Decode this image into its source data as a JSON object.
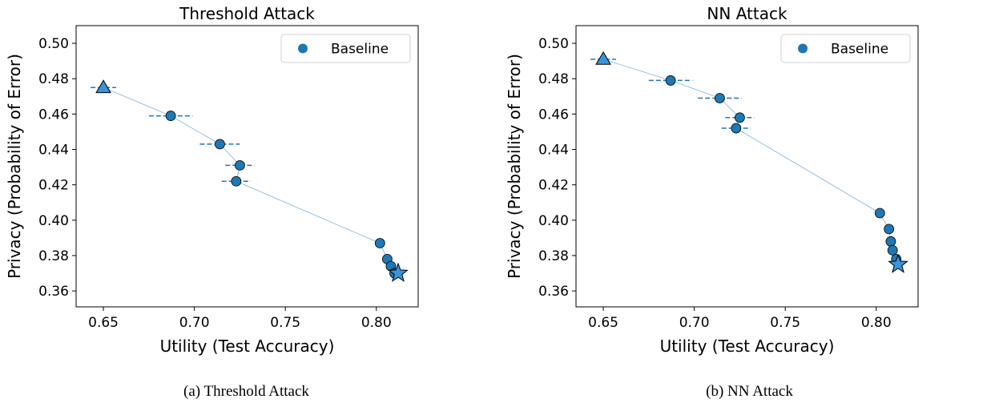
{
  "figures": [
    {
      "caption": "(a) Threshold Attack",
      "chart_data": {
        "type": "scatter",
        "title": "Threshold Attack",
        "xlabel": "Utility (Test Accuracy)",
        "ylabel": "Privacy (Probability of Error)",
        "xlim": [
          0.635,
          0.823
        ],
        "ylim": [
          0.351,
          0.51
        ],
        "xticks": [
          "0.65",
          "0.70",
          "0.75",
          "0.80"
        ],
        "yticks": [
          "0.36",
          "0.38",
          "0.40",
          "0.42",
          "0.44",
          "0.46",
          "0.48",
          "0.50"
        ],
        "legend": {
          "label": "Baseline",
          "position": "top-right"
        },
        "grid": false,
        "series": [
          {
            "name": "Baseline",
            "color": "#1f77b4",
            "points": [
              {
                "x": 0.65,
                "y": 0.475,
                "marker": "triangle",
                "xerr": 0.007
              },
              {
                "x": 0.687,
                "y": 0.459,
                "xerr": 0.012
              },
              {
                "x": 0.714,
                "y": 0.443,
                "xerr": 0.011
              },
              {
                "x": 0.725,
                "y": 0.431,
                "xerr": 0.008
              },
              {
                "x": 0.723,
                "y": 0.422,
                "xerr": 0.008
              },
              {
                "x": 0.802,
                "y": 0.387
              },
              {
                "x": 0.806,
                "y": 0.378
              },
              {
                "x": 0.808,
                "y": 0.374
              },
              {
                "x": 0.81,
                "y": 0.37
              },
              {
                "x": 0.812,
                "y": 0.37,
                "marker": "star"
              }
            ]
          }
        ]
      }
    },
    {
      "caption": "(b) NN Attack",
      "chart_data": {
        "type": "scatter",
        "title": "NN Attack",
        "xlabel": "Utility (Test Accuracy)",
        "ylabel": "Privacy (Probability of Error)",
        "xlim": [
          0.635,
          0.823
        ],
        "ylim": [
          0.351,
          0.51
        ],
        "xticks": [
          "0.65",
          "0.70",
          "0.75",
          "0.80"
        ],
        "yticks": [
          "0.36",
          "0.38",
          "0.40",
          "0.42",
          "0.44",
          "0.46",
          "0.48",
          "0.50"
        ],
        "legend": {
          "label": "Baseline",
          "position": "top-right"
        },
        "grid": false,
        "series": [
          {
            "name": "Baseline",
            "color": "#1f77b4",
            "points": [
              {
                "x": 0.65,
                "y": 0.491,
                "marker": "triangle",
                "xerr": 0.007
              },
              {
                "x": 0.687,
                "y": 0.479,
                "xerr": 0.012
              },
              {
                "x": 0.714,
                "y": 0.469,
                "xerr": 0.012
              },
              {
                "x": 0.725,
                "y": 0.458,
                "xerr": 0.008
              },
              {
                "x": 0.723,
                "y": 0.452,
                "xerr": 0.008
              },
              {
                "x": 0.802,
                "y": 0.404
              },
              {
                "x": 0.807,
                "y": 0.395
              },
              {
                "x": 0.808,
                "y": 0.388
              },
              {
                "x": 0.809,
                "y": 0.383
              },
              {
                "x": 0.811,
                "y": 0.378
              },
              {
                "x": 0.812,
                "y": 0.375,
                "marker": "star"
              }
            ]
          }
        ]
      }
    }
  ]
}
